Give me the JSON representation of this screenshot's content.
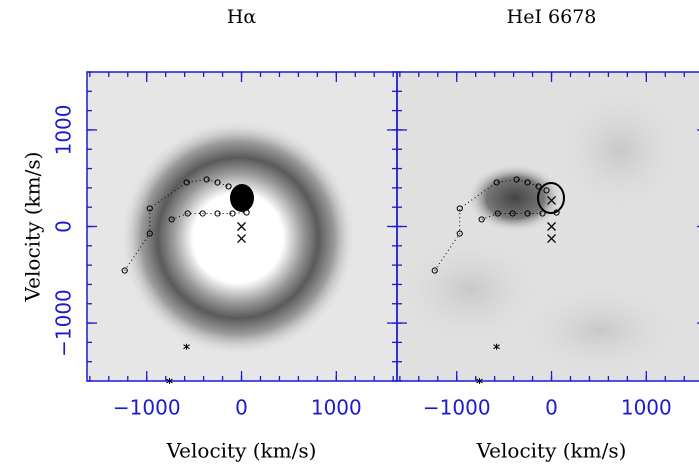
{
  "chart_data": [
    {
      "type": "scatter",
      "title": "Hα",
      "xlabel": "Velocity (km/s)",
      "ylabel": "Velocity (km/s)",
      "xlim": [
        -1630,
        1640
      ],
      "ylim": [
        -1600,
        1600
      ],
      "xticks": [
        {
          "value": -1000,
          "label": "−1000"
        },
        0,
        1000
      ],
      "yticks": [
        {
          "value": -1000,
          "label": "−1000"
        },
        0,
        1000
      ],
      "series": [
        {
          "marker": "o",
          "color": "#000000",
          "x": [
            -1232,
            -968,
            -968,
            -579,
            -368,
            -253,
            -137,
            -53
          ],
          "values": [
            -456,
            -73,
            187,
            456,
            487,
            456,
            415,
            374
          ]
        },
        {
          "marker": "o",
          "color": "#000000",
          "x": [
            -737,
            -568,
            -410,
            -253,
            -95,
            53
          ],
          "values": [
            73,
            135,
            135,
            135,
            135,
            145
          ]
        },
        {
          "marker": "x",
          "color": "#000000",
          "x": [
            0,
            0,
            0
          ],
          "values": [
            270,
            0,
            -125
          ]
        },
        {
          "marker": "*",
          "color": "#000000",
          "x": [
            -580,
            -760
          ],
          "values": [
            -1245,
            -1600
          ]
        }
      ]
    },
    {
      "type": "scatter",
      "title": "HeI 6678",
      "xlabel": "Velocity (km/s)",
      "xlim": [
        -1630,
        1640
      ],
      "ylim": [
        -1600,
        1600
      ],
      "xticks": [
        {
          "value": -1000,
          "label": "−1000"
        },
        0,
        1000
      ],
      "yticks": [
        -1000,
        0,
        1000
      ],
      "ytick_labels": false,
      "series": [
        {
          "marker": "o",
          "color": "#000000",
          "x": [
            -1232,
            -968,
            -968,
            -579,
            -368,
            -253,
            -137,
            -53
          ],
          "values": [
            -456,
            -73,
            187,
            456,
            487,
            456,
            415,
            374
          ]
        },
        {
          "marker": "o",
          "color": "#000000",
          "x": [
            -737,
            -568,
            -410,
            -253,
            -95,
            53
          ],
          "values": [
            73,
            135,
            135,
            135,
            135,
            145
          ]
        },
        {
          "marker": "x",
          "color": "#000000",
          "x": [
            0,
            0,
            0
          ],
          "values": [
            270,
            0,
            -125
          ]
        },
        {
          "marker": "*",
          "color": "#000000",
          "x": [
            -580,
            -760
          ],
          "values": [
            -1245,
            -1600
          ]
        }
      ]
    }
  ]
}
